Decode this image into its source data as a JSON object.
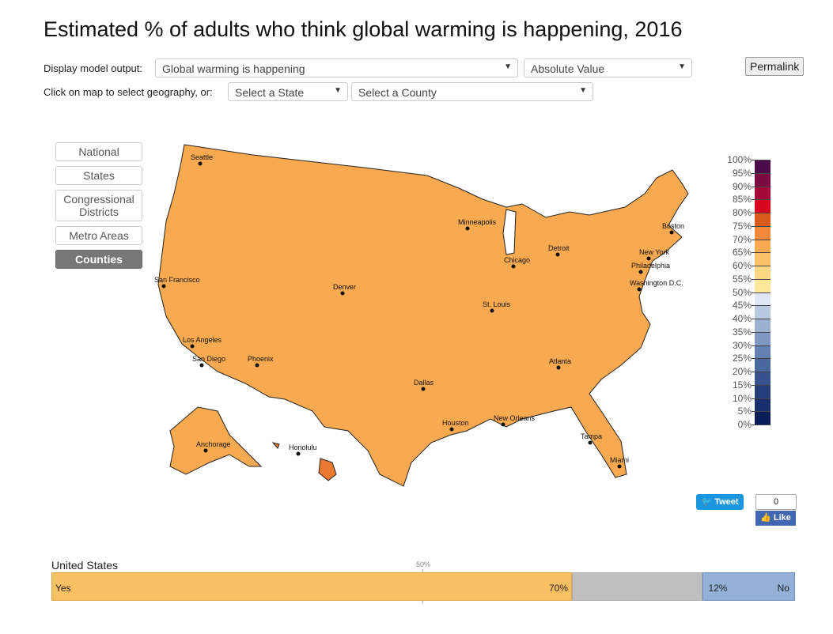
{
  "title": "Estimated % of adults who think global warming is happening, 2016",
  "controls": {
    "display_label": "Display model output:",
    "display_value": "Global warming is happening",
    "measure_value": "Absolute Value",
    "geo_label": "Click on map to select geography, or:",
    "state_placeholder": "Select a State",
    "county_placeholder": "Select a County",
    "permalink": "Permalink"
  },
  "nav": [
    "National",
    "States",
    "Congressional Districts",
    "Metro Areas",
    "Counties"
  ],
  "nav_selected": "Counties",
  "map": {
    "cities": [
      "Seattle",
      "San Francisco",
      "Los Angeles",
      "San Diego",
      "Phoenix",
      "Denver",
      "Dallas",
      "Houston",
      "Minneapolis",
      "Chicago",
      "St. Louis",
      "Detroit",
      "New Orleans",
      "Atlanta",
      "Tampa",
      "Miami",
      "Washington D.C.",
      "Philadelphia",
      "New York",
      "Boston",
      "Anchorage",
      "Honolulu"
    ],
    "fill_color": "#f9a94f"
  },
  "legend": {
    "ticks": [
      "100%",
      "95%",
      "90%",
      "85%",
      "80%",
      "75%",
      "70%",
      "65%",
      "60%",
      "55%",
      "50%",
      "45%",
      "40%",
      "35%",
      "30%",
      "25%",
      "20%",
      "15%",
      "10%",
      "5%",
      "0%"
    ],
    "colors": [
      "#4a0b4a",
      "#7a0a40",
      "#a5093a",
      "#d7061e",
      "#d95a1a",
      "#f6883a",
      "#f9a94f",
      "#fcc06b",
      "#fdd884",
      "#fde89c",
      "#dde6f2",
      "#b8c9e0",
      "#9bb0d0",
      "#7e98c2",
      "#6280b2",
      "#4a68a0",
      "#36528e",
      "#253f7d",
      "#172f6d",
      "#0c1e5a"
    ]
  },
  "social": {
    "tweet": "Tweet",
    "like_count": "0",
    "like": "Like"
  },
  "summary": {
    "region": "United States",
    "midline": "50%",
    "yes_label": "Yes",
    "yes_value": "70%",
    "yes_pct": 70,
    "no_label": "No",
    "no_value": "12%",
    "no_pct": 12.4,
    "colors": {
      "yes": "#fbc064",
      "neutral": "#bfbfbf",
      "no": "#94b0d6"
    }
  }
}
